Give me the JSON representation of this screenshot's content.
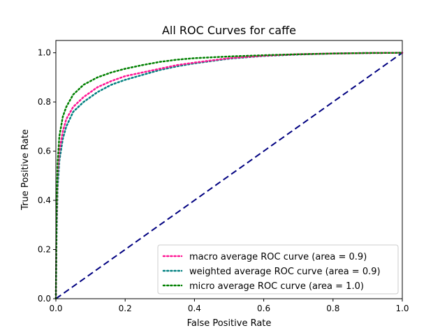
{
  "chart_data": {
    "type": "line",
    "title": "All ROC Curves for caffe",
    "xlabel": "False Positive Rate",
    "ylabel": "True Positive Rate",
    "xlim": [
      0.0,
      1.0
    ],
    "ylim": [
      0.0,
      1.05
    ],
    "x_ticks": [
      "0.0",
      "0.2",
      "0.4",
      "0.6",
      "0.8",
      "1.0"
    ],
    "y_ticks": [
      "0.0",
      "0.2",
      "0.4",
      "0.6",
      "0.8",
      "1.0"
    ],
    "grid": false,
    "legend_position": "lower-right",
    "series": [
      {
        "name": "macro average ROC curve (area = 0.9)",
        "color": "#ff1493",
        "line_style": "dotted",
        "points": [
          [
            0.0,
            0.0
          ],
          [
            0.002,
            0.3
          ],
          [
            0.005,
            0.5
          ],
          [
            0.01,
            0.6
          ],
          [
            0.02,
            0.68
          ],
          [
            0.03,
            0.73
          ],
          [
            0.05,
            0.78
          ],
          [
            0.08,
            0.82
          ],
          [
            0.12,
            0.86
          ],
          [
            0.16,
            0.885
          ],
          [
            0.2,
            0.905
          ],
          [
            0.25,
            0.92
          ],
          [
            0.3,
            0.935
          ],
          [
            0.35,
            0.95
          ],
          [
            0.4,
            0.96
          ],
          [
            0.5,
            0.978
          ],
          [
            0.6,
            0.988
          ],
          [
            0.7,
            0.994
          ],
          [
            0.8,
            0.997
          ],
          [
            0.9,
            0.999
          ],
          [
            1.0,
            1.0
          ]
        ]
      },
      {
        "name": "weighted average ROC curve (area = 0.9)",
        "color": "#008080",
        "line_style": "dotted",
        "points": [
          [
            0.0,
            0.0
          ],
          [
            0.002,
            0.25
          ],
          [
            0.005,
            0.45
          ],
          [
            0.01,
            0.56
          ],
          [
            0.02,
            0.65
          ],
          [
            0.03,
            0.7
          ],
          [
            0.05,
            0.76
          ],
          [
            0.08,
            0.8
          ],
          [
            0.12,
            0.84
          ],
          [
            0.16,
            0.87
          ],
          [
            0.2,
            0.89
          ],
          [
            0.25,
            0.91
          ],
          [
            0.3,
            0.93
          ],
          [
            0.35,
            0.945
          ],
          [
            0.4,
            0.957
          ],
          [
            0.5,
            0.976
          ],
          [
            0.6,
            0.987
          ],
          [
            0.7,
            0.993
          ],
          [
            0.8,
            0.997
          ],
          [
            0.9,
            0.999
          ],
          [
            1.0,
            1.0
          ]
        ]
      },
      {
        "name": "micro average ROC curve (area = 1.0)",
        "color": "#008000",
        "line_style": "dotted",
        "points": [
          [
            0.0,
            0.0
          ],
          [
            0.002,
            0.35
          ],
          [
            0.005,
            0.55
          ],
          [
            0.01,
            0.66
          ],
          [
            0.02,
            0.74
          ],
          [
            0.03,
            0.78
          ],
          [
            0.05,
            0.83
          ],
          [
            0.08,
            0.87
          ],
          [
            0.12,
            0.9
          ],
          [
            0.16,
            0.92
          ],
          [
            0.2,
            0.935
          ],
          [
            0.25,
            0.95
          ],
          [
            0.3,
            0.963
          ],
          [
            0.35,
            0.972
          ],
          [
            0.4,
            0.978
          ],
          [
            0.5,
            0.985
          ],
          [
            0.6,
            0.99
          ],
          [
            0.7,
            0.994
          ],
          [
            0.8,
            0.997
          ],
          [
            0.9,
            0.999
          ],
          [
            1.0,
            1.0
          ]
        ]
      },
      {
        "name": "",
        "color": "#000080",
        "line_style": "dashed",
        "points": [
          [
            0.0,
            0.0
          ],
          [
            1.0,
            1.0
          ]
        ]
      }
    ]
  }
}
